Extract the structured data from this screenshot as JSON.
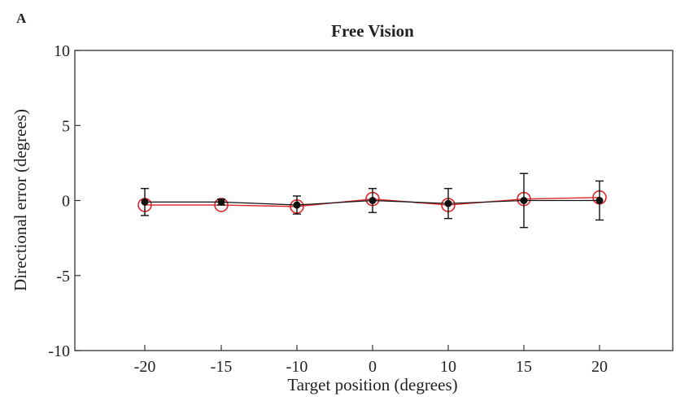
{
  "panel_label": "A",
  "chart_data": {
    "type": "line",
    "title": "Free Vision",
    "xlabel": "Target position (degrees)",
    "ylabel": "Directional error (degrees)",
    "categories": [
      "-20",
      "-15",
      "-10",
      "0",
      "10",
      "15",
      "20"
    ],
    "ylim": [
      -10,
      10
    ],
    "yticks": [
      10,
      5,
      0,
      -5,
      -10
    ],
    "grid": false,
    "legend": "none",
    "series": [
      {
        "marker": "filled-circle",
        "color": "#111111",
        "values": [
          -0.1,
          -0.1,
          -0.3,
          0.0,
          -0.2,
          0.0,
          0.0
        ],
        "errors": [
          0.9,
          0.2,
          0.6,
          0.8,
          1.0,
          1.8,
          1.3
        ]
      },
      {
        "marker": "open-circle",
        "color": "#d9262b",
        "values": [
          -0.3,
          -0.3,
          -0.4,
          0.1,
          -0.3,
          0.1,
          0.2
        ],
        "errors": [
          null,
          null,
          null,
          null,
          null,
          null,
          null
        ]
      }
    ]
  }
}
